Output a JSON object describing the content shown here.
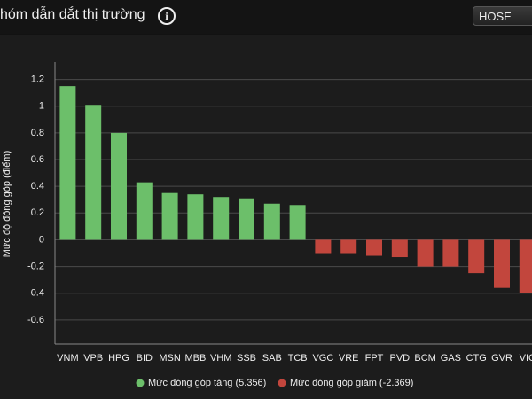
{
  "header": {
    "title": "hóm dẫn dắt thị trường",
    "exchange": "HOSE"
  },
  "chart_data": {
    "type": "bar",
    "ylabel": "Mức độ đóng góp (điểm)",
    "categories": [
      "VNM",
      "VPB",
      "HPG",
      "BID",
      "MSN",
      "MBB",
      "VHM",
      "SSB",
      "SAB",
      "TCB",
      "VGC",
      "VRE",
      "FPT",
      "PVD",
      "BCM",
      "GAS",
      "CTG",
      "GVR",
      "VIC"
    ],
    "series": [
      {
        "name": "Mức đóng góp tăng (5.356)",
        "color": "#6cbf6a",
        "values": [
          1.15,
          1.01,
          0.8,
          0.43,
          0.35,
          0.34,
          0.32,
          0.31,
          0.27,
          0.26,
          null,
          null,
          null,
          null,
          null,
          null,
          null,
          null,
          null
        ]
      },
      {
        "name": "Mức đóng góp giảm (-2.369)",
        "color": "#c2463d",
        "values": [
          null,
          null,
          null,
          null,
          null,
          null,
          null,
          null,
          null,
          null,
          -0.1,
          -0.1,
          -0.12,
          -0.13,
          -0.2,
          -0.2,
          -0.25,
          -0.36,
          -0.4
        ]
      }
    ],
    "ylim": [
      -0.78,
      1.33
    ],
    "yticks": [
      1.2,
      1,
      0.8,
      0.6,
      0.4,
      0.2,
      0,
      -0.2,
      -0.4,
      -0.6
    ],
    "grid": true
  }
}
